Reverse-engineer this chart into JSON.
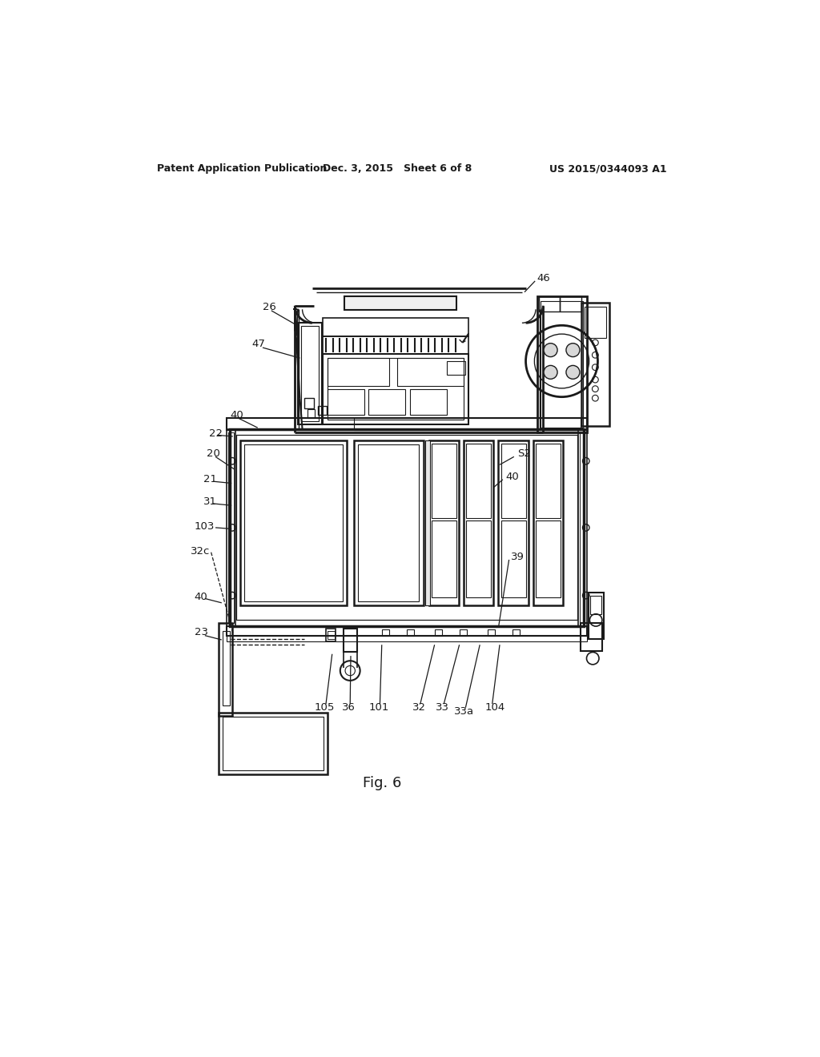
{
  "bg_color": "#ffffff",
  "line_color": "#1a1a1a",
  "header_left": "Patent Application Publication",
  "header_mid": "Dec. 3, 2015   Sheet 6 of 8",
  "header_right": "US 2015/0344093 A1",
  "fig_label": "Fig. 6"
}
